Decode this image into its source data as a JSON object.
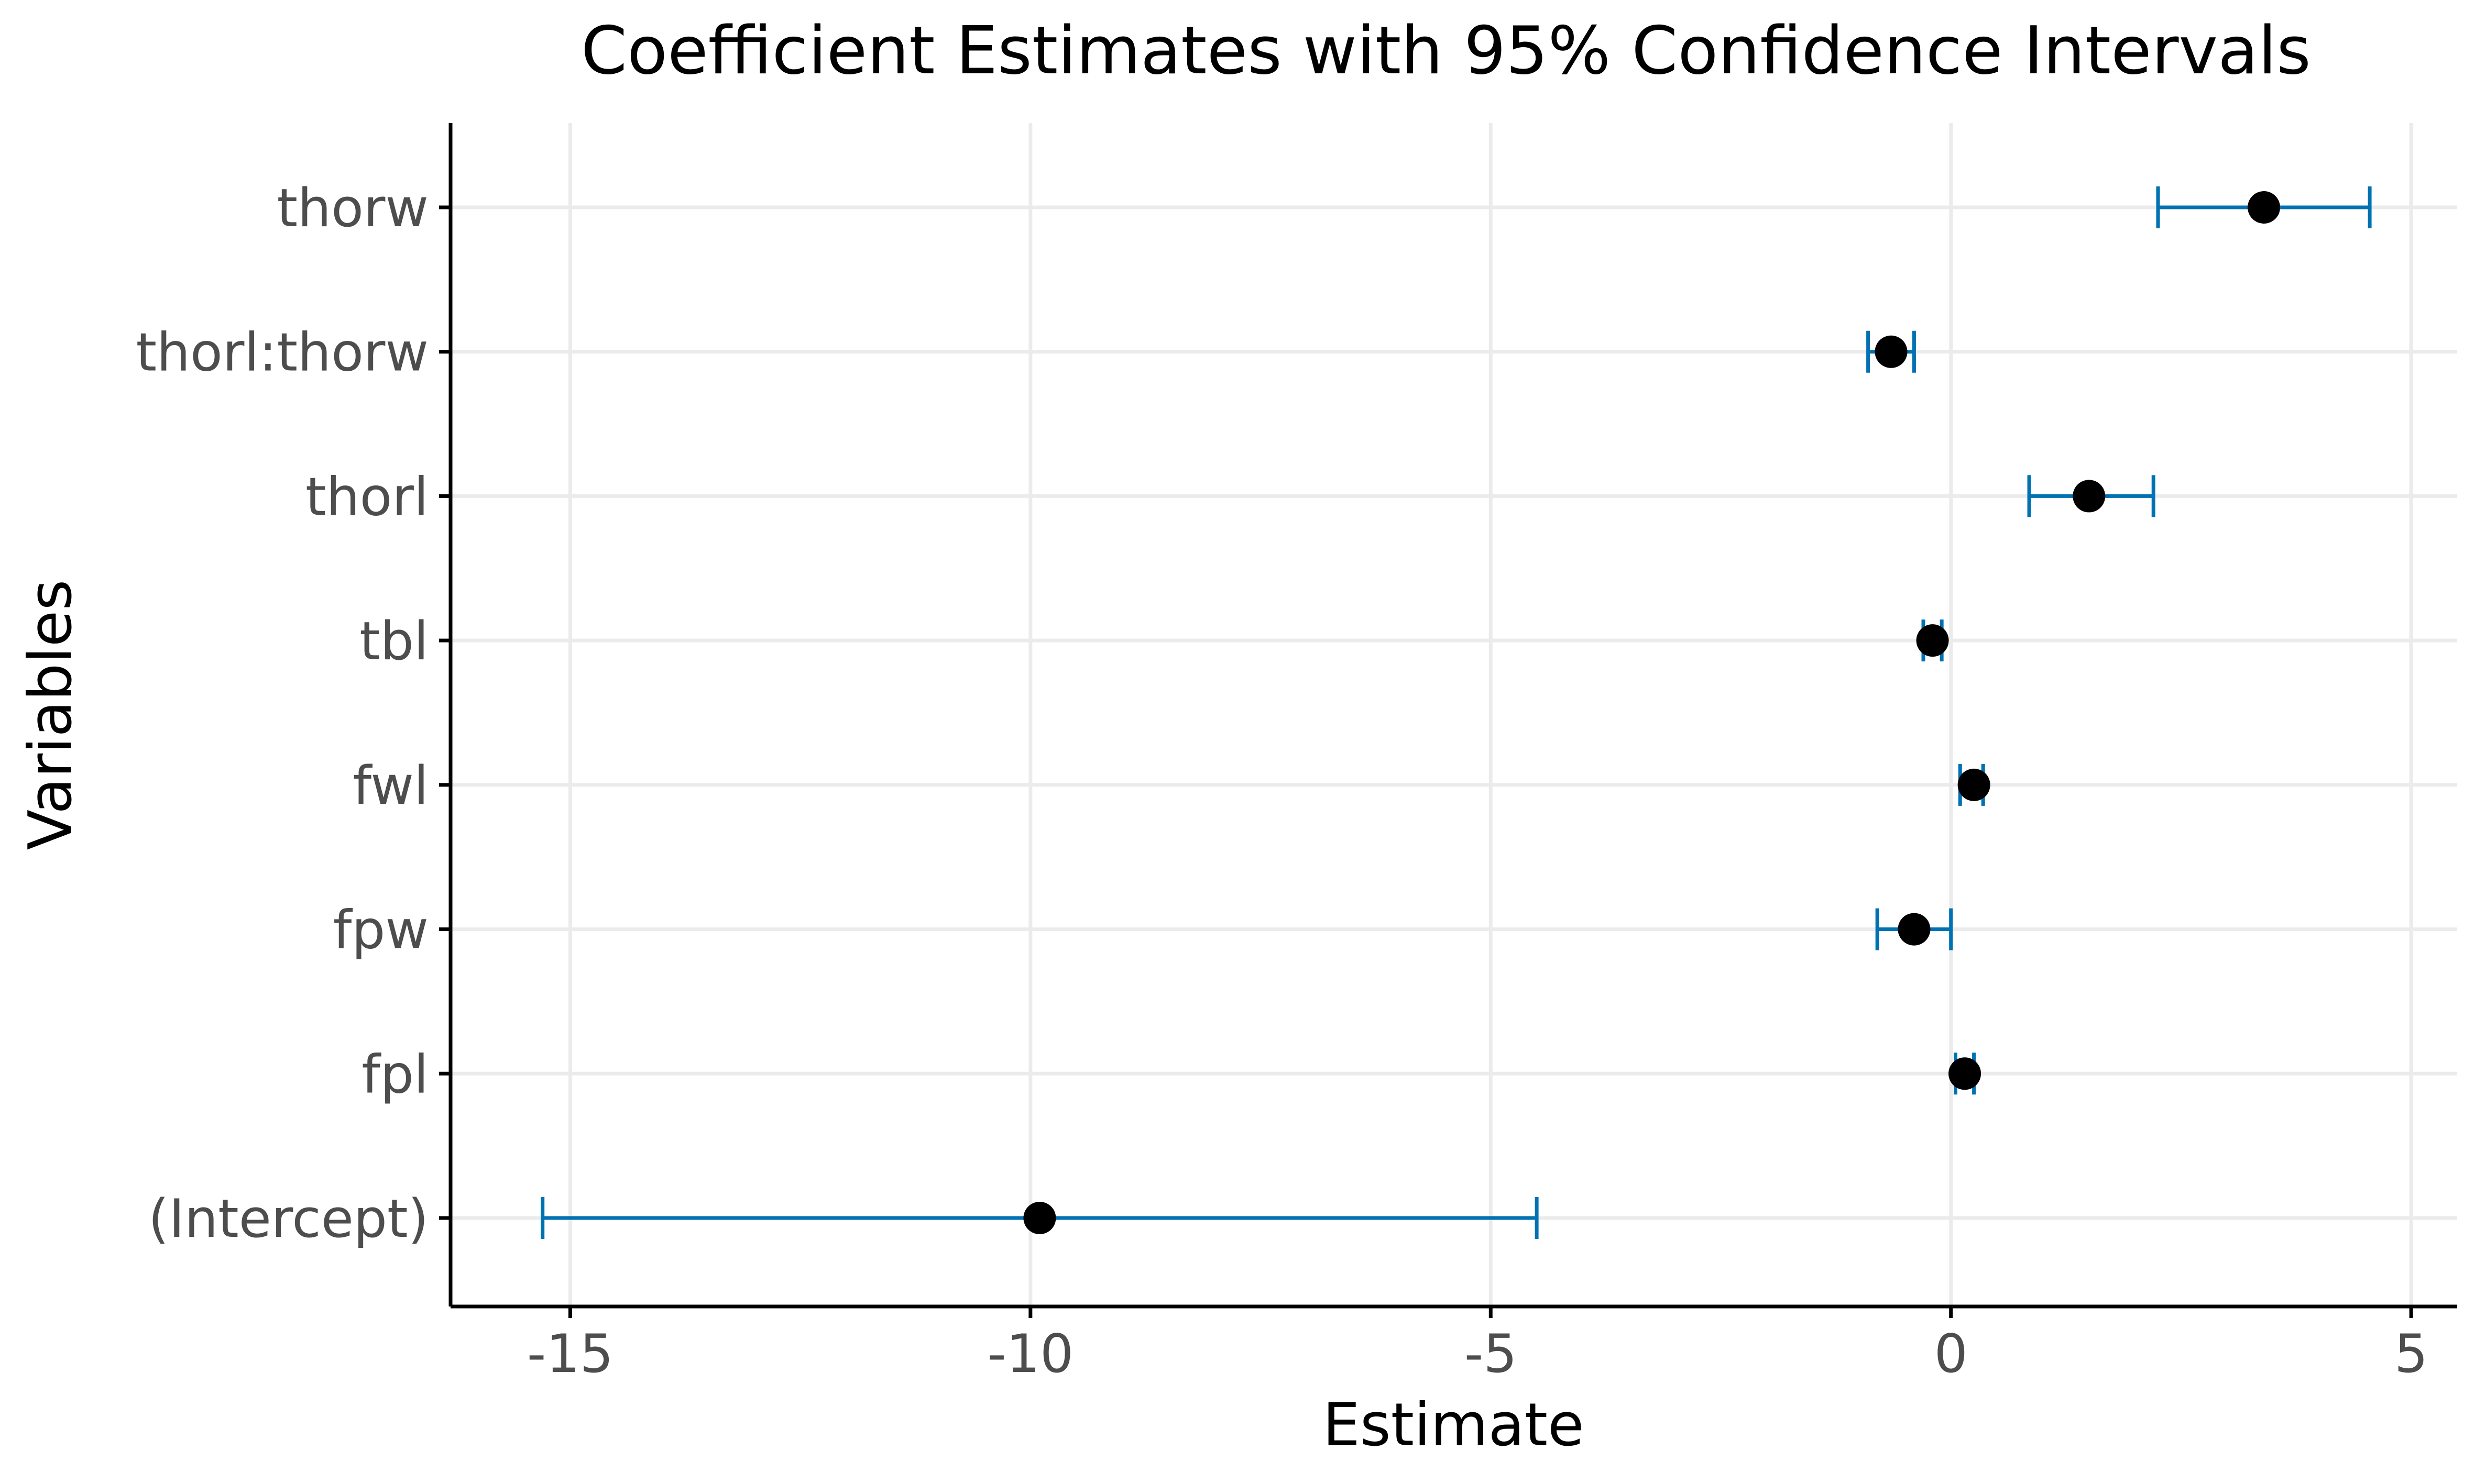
{
  "chart_data": {
    "type": "scatter",
    "title": "Coefficient Estimates with 95% Confidence Intervals",
    "xlabel": "Estimate",
    "ylabel": "Variables",
    "categories": [
      "(Intercept)",
      "fpl",
      "fpw",
      "fwl",
      "tbl",
      "thorl",
      "thorl:thorw",
      "thorw"
    ],
    "series": [
      {
        "estimate": [
          -9.9,
          0.15,
          -0.4,
          0.25,
          -0.2,
          1.5,
          -0.65,
          3.4
        ],
        "lower": [
          -15.3,
          0.05,
          -0.8,
          0.1,
          -0.3,
          0.85,
          -0.9,
          2.25
        ],
        "upper": [
          -4.5,
          0.25,
          0.0,
          0.35,
          -0.1,
          2.2,
          -0.4,
          4.55
        ]
      }
    ],
    "x_ticks": [
      -15,
      -10,
      -5,
      0,
      5
    ],
    "x_tick_labels": [
      "-15",
      "-10",
      "-5",
      "0",
      "5"
    ],
    "xlim": [
      -16.3,
      5.5
    ],
    "grid": true,
    "legend": "none",
    "colors": {
      "point": "#000000",
      "errorbar": "#0072B2",
      "grid": "#ebebeb",
      "axis": "#000000",
      "tick_text": "#4d4d4d"
    }
  }
}
